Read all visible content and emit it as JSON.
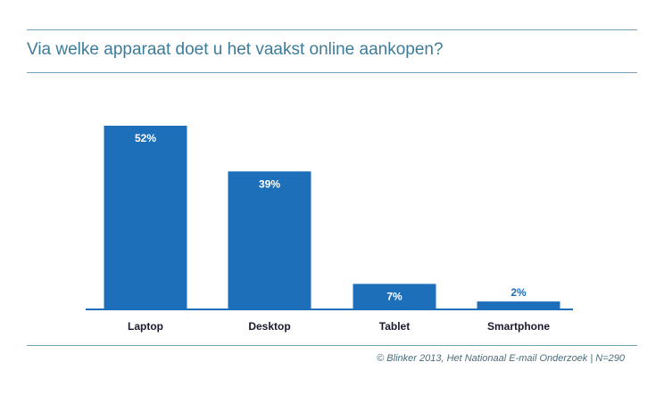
{
  "header": {
    "title": "Via welke apparaat doet u het vaakst online aankopen?"
  },
  "footer": {
    "source": "© Blinker 2013, Het Nationaal E-mail Onderzoek | N=290"
  },
  "colors": {
    "bar": "#1e6fba",
    "axis": "#1e6fba",
    "title": "#3d7c99",
    "rule": "#6f9fb5",
    "bar_label": "#ffffff",
    "outside_label": "#1e6fba",
    "category_label": "#1a1a2e"
  },
  "chart_data": {
    "type": "bar",
    "title": "Via welke apparaat doet u het vaakst online aankopen?",
    "categories": [
      "Laptop",
      "Desktop",
      "Tablet",
      "Smartphone"
    ],
    "values": [
      52,
      39,
      7,
      2
    ],
    "value_labels": [
      "52%",
      "39%",
      "7%",
      "2%"
    ],
    "unit": "%",
    "ylim": [
      0,
      52
    ],
    "grid": false,
    "legend": "none"
  }
}
